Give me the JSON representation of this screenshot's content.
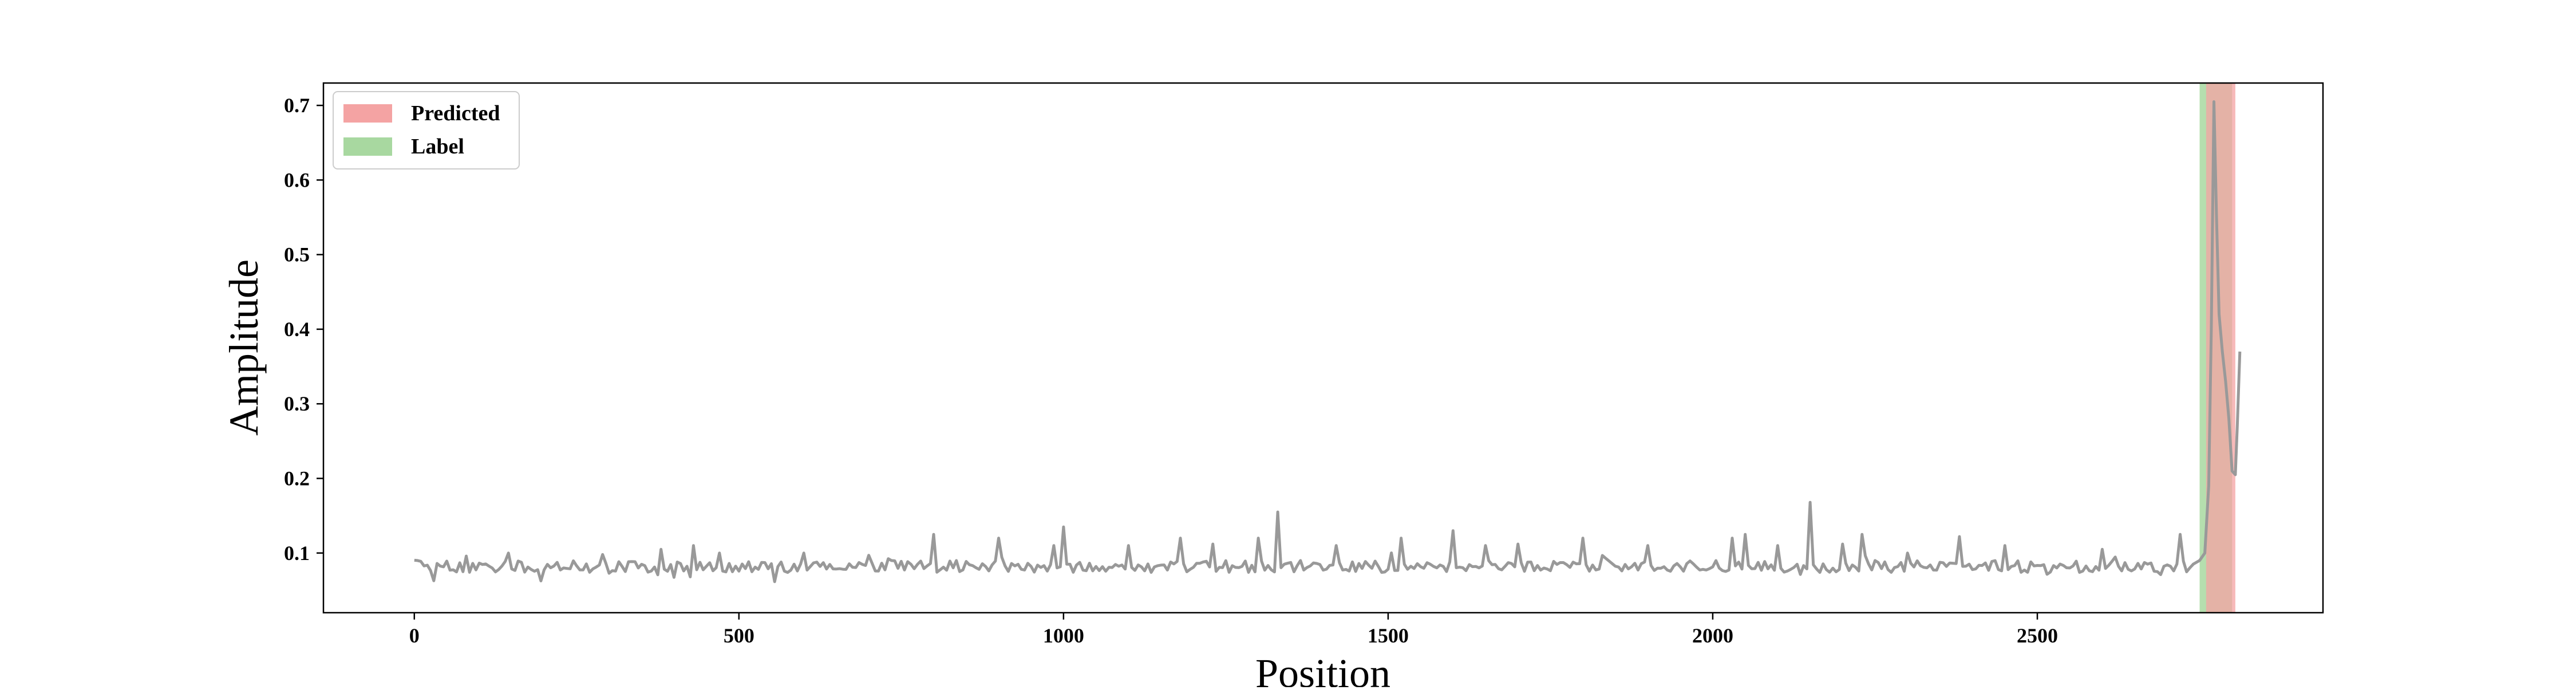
{
  "chart_data": {
    "type": "line",
    "title": "",
    "xlabel": "Position",
    "ylabel": "Amplitude",
    "xlim": [
      -140,
      2940
    ],
    "ylim": [
      0.02,
      0.73
    ],
    "xticks": [
      0,
      500,
      1000,
      1500,
      2000,
      2500
    ],
    "yticks": [
      0.1,
      0.2,
      0.3,
      0.4,
      0.5,
      0.6,
      0.7
    ],
    "xtick_labels": [
      "0",
      "500",
      "1000",
      "1500",
      "2000",
      "2500"
    ],
    "ytick_labels": [
      "0.1",
      "0.2",
      "0.3",
      "0.4",
      "0.5",
      "0.6",
      "0.7"
    ],
    "grid": false,
    "legend_position": "top-left",
    "legend": [
      {
        "label": "Predicted",
        "color": "#f4a3a3"
      },
      {
        "label": "Label",
        "color": "#a8d8a0"
      }
    ],
    "spans": [
      {
        "name": "Label",
        "x_start": 2750,
        "x_end": 2800,
        "color": "#a8d8a0",
        "opacity": 0.85
      },
      {
        "name": "Predicted",
        "x_start": 2760,
        "x_end": 2805,
        "color": "#f4a3a3",
        "opacity": 0.75
      }
    ],
    "series": [
      {
        "color": "#999999",
        "baseline": {
          "x_start": 0,
          "x_end": 2740,
          "step": 5,
          "mean": 0.082,
          "noise": 0.008
        },
        "spikes": [
          [
            145,
            0.1
          ],
          [
            290,
            0.098
          ],
          [
            380,
            0.105
          ],
          [
            430,
            0.11
          ],
          [
            600,
            0.1
          ],
          [
            700,
            0.097
          ],
          [
            800,
            0.125
          ],
          [
            900,
            0.12
          ],
          [
            985,
            0.11
          ],
          [
            1000,
            0.135
          ],
          [
            1100,
            0.11
          ],
          [
            1180,
            0.12
          ],
          [
            1230,
            0.112
          ],
          [
            1300,
            0.12
          ],
          [
            1330,
            0.155
          ],
          [
            1420,
            0.11
          ],
          [
            1520,
            0.12
          ],
          [
            1600,
            0.13
          ],
          [
            1650,
            0.11
          ],
          [
            1700,
            0.112
          ],
          [
            1800,
            0.12
          ],
          [
            1900,
            0.11
          ],
          [
            2030,
            0.12
          ],
          [
            2050,
            0.125
          ],
          [
            2100,
            0.11
          ],
          [
            2150,
            0.168
          ],
          [
            2200,
            0.112
          ],
          [
            2230,
            0.125
          ],
          [
            2300,
            0.1
          ],
          [
            2380,
            0.122
          ],
          [
            2450,
            0.11
          ],
          [
            2600,
            0.105
          ],
          [
            2720,
            0.125
          ]
        ],
        "tail": [
          [
            2740,
            0.085
          ],
          [
            2750,
            0.09
          ],
          [
            2758,
            0.1
          ],
          [
            2764,
            0.19
          ],
          [
            2768,
            0.4
          ],
          [
            2772,
            0.705
          ],
          [
            2776,
            0.55
          ],
          [
            2780,
            0.42
          ],
          [
            2785,
            0.37
          ],
          [
            2790,
            0.33
          ],
          [
            2795,
            0.28
          ],
          [
            2800,
            0.21
          ],
          [
            2805,
            0.205
          ],
          [
            2808,
            0.27
          ],
          [
            2812,
            0.37
          ]
        ]
      }
    ]
  }
}
